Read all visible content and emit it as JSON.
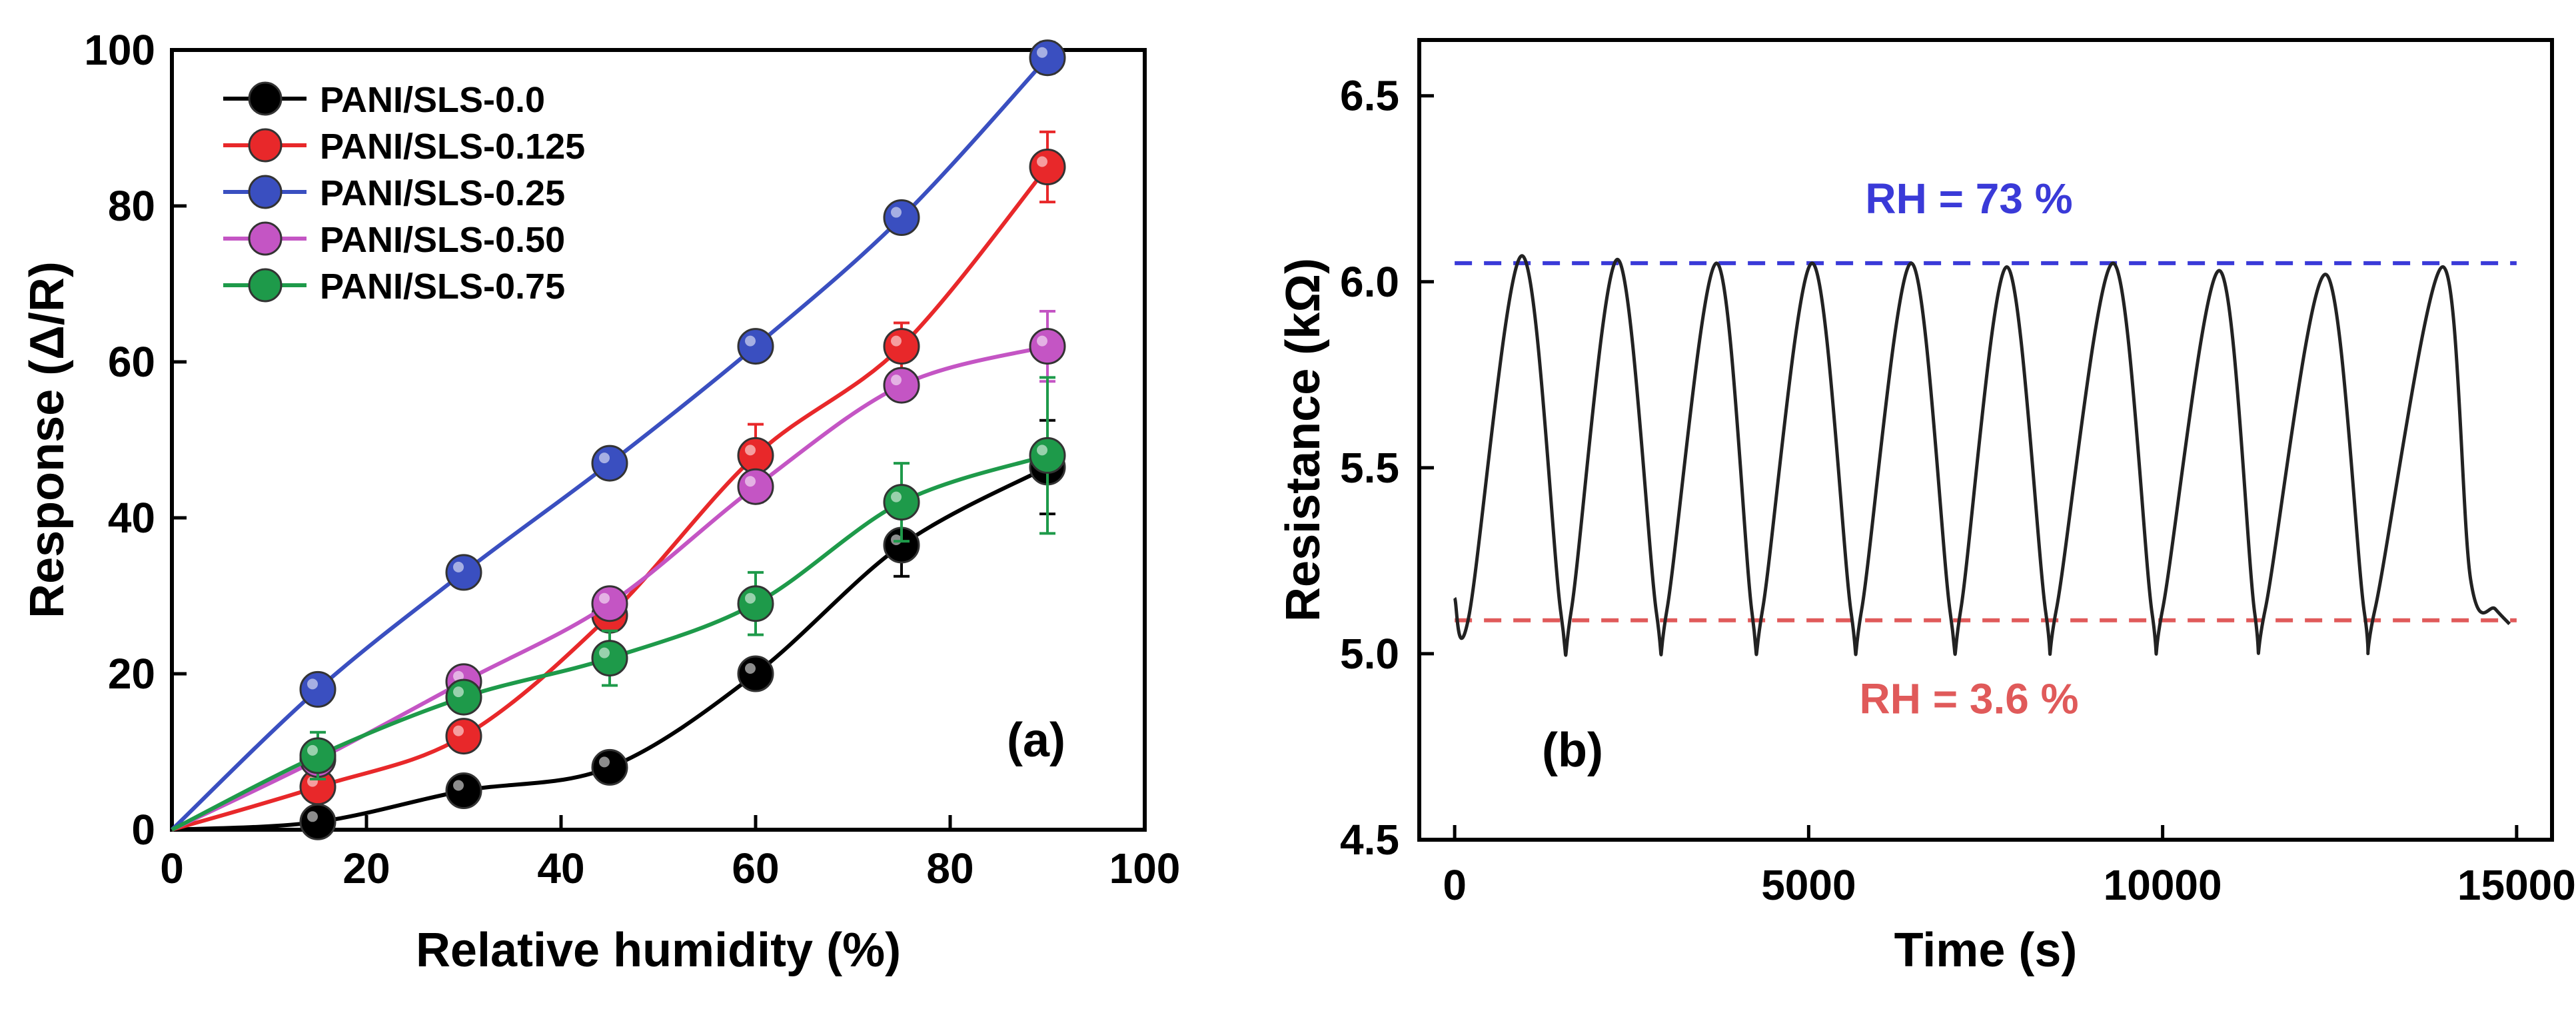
{
  "chart_data": [
    {
      "panel": "a",
      "type": "line",
      "panel_label": "(a)",
      "xlabel": "Relative humidity (%)",
      "ylabel": "Response (Δ/R)",
      "xlim": [
        0,
        100
      ],
      "ylim": [
        0,
        100
      ],
      "xticks": [
        0,
        20,
        40,
        60,
        80,
        100
      ],
      "yticks": [
        0,
        20,
        40,
        60,
        80,
        100
      ],
      "legend_position": "top-left",
      "x": [
        0,
        15,
        30,
        45,
        60,
        75,
        90
      ],
      "series": [
        {
          "name": "PANI/SLS-0.0",
          "color": "#000000",
          "values": [
            0,
            1,
            5,
            8,
            20,
            36.5,
            46.5
          ],
          "errors": [
            0,
            0.5,
            0.8,
            1,
            1.5,
            4,
            6
          ]
        },
        {
          "name": "PANI/SLS-0.125",
          "color": "#e8282a",
          "values": [
            0,
            5.5,
            12,
            27.5,
            48,
            62,
            85
          ],
          "errors": [
            0,
            1,
            1.2,
            2,
            4,
            3,
            4.5
          ]
        },
        {
          "name": "PANI/SLS-0.25",
          "color": "#3a4fc0",
          "values": [
            0,
            18,
            33,
            47,
            62,
            78.5,
            99
          ],
          "errors": [
            0,
            0.6,
            0.8,
            1,
            1,
            1.2,
            2
          ]
        },
        {
          "name": "PANI/SLS-0.50",
          "color": "#c455c4",
          "values": [
            0,
            9,
            19,
            29,
            44,
            57,
            62
          ],
          "errors": [
            0,
            1,
            1,
            1,
            2,
            1.5,
            4.5
          ]
        },
        {
          "name": "PANI/SLS-0.75",
          "color": "#1e9a4a",
          "values": [
            0,
            9.5,
            17,
            22,
            29,
            42,
            48
          ],
          "errors": [
            0,
            3,
            1.5,
            3.5,
            4,
            5,
            10
          ]
        }
      ]
    },
    {
      "panel": "b",
      "type": "line",
      "panel_label": "(b)",
      "xlabel": "Time (s)",
      "ylabel": "Resistance (kΩ)",
      "xlim": [
        -500,
        15500
      ],
      "ylim": [
        4.5,
        6.65
      ],
      "xticks": [
        0,
        5000,
        10000,
        15000
      ],
      "yticks": [
        4.5,
        5.0,
        5.5,
        6.0,
        6.5
      ],
      "ytick_labels": [
        "4.5",
        "5.0",
        "5.5",
        "6.0",
        "6.5"
      ],
      "reference_lines": [
        {
          "label": "RH = 73 %",
          "value": 6.05,
          "color": "#3a3ad8"
        },
        {
          "label": "RH = 3.6 %",
          "value": 5.09,
          "color": "#e05a5a"
        }
      ],
      "series": [
        {
          "name": "Resistance",
          "color": "#222222",
          "x": [
            0,
            200,
            950,
            1500,
            1650,
            2300,
            2850,
            3000,
            3700,
            4200,
            4350,
            5050,
            5600,
            5750,
            6450,
            7000,
            7150,
            7800,
            8350,
            8500,
            9300,
            9850,
            10000,
            10800,
            11300,
            11450,
            12300,
            12850,
            13000,
            13950,
            14350,
            14700,
            14900
          ],
          "values": [
            5.15,
            5.1,
            6.07,
            5.11,
            5.12,
            6.06,
            5.11,
            5.12,
            6.05,
            5.11,
            5.12,
            6.05,
            5.11,
            5.12,
            6.05,
            5.11,
            5.12,
            6.04,
            5.11,
            5.12,
            6.05,
            5.11,
            5.12,
            6.03,
            5.11,
            5.12,
            6.02,
            5.11,
            5.12,
            6.04,
            5.2,
            5.12,
            5.08
          ]
        }
      ]
    }
  ]
}
